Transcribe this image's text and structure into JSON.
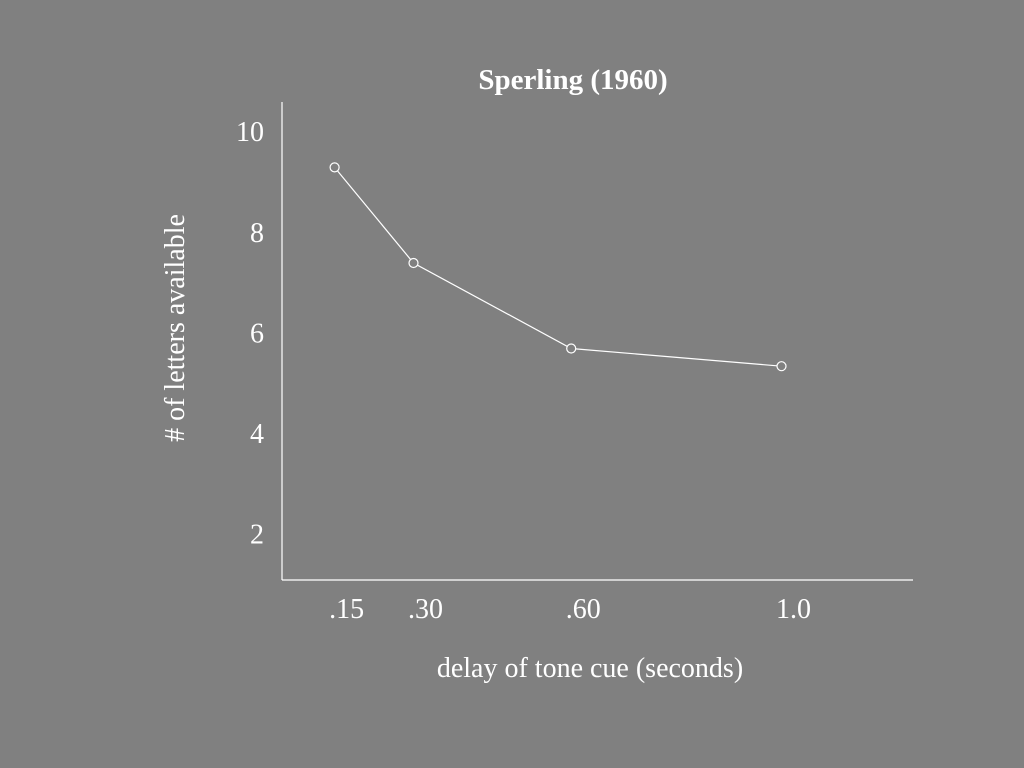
{
  "chart_data": {
    "type": "line",
    "title": "Sperling (1960)",
    "xlabel": "delay of tone cue (seconds)",
    "ylabel": "# of letters available",
    "categories": [
      ".15",
      ".30",
      ".60",
      "1.0"
    ],
    "x": [
      0.15,
      0.3,
      0.6,
      1.0
    ],
    "y_ticks": [
      "10",
      "8",
      "6",
      "4",
      "2"
    ],
    "y_tick_values": [
      10,
      8,
      6,
      4,
      2
    ],
    "ylim": [
      1.1,
      10.6
    ],
    "xlim": [
      0.05,
      1.25
    ],
    "grid": false,
    "marker": "open-circle",
    "colors": {
      "background": "#808080",
      "line": "#ffffff",
      "text": "#ffffff"
    },
    "series": [
      {
        "values": [
          9.3,
          7.4,
          5.7,
          5.35
        ]
      }
    ]
  }
}
